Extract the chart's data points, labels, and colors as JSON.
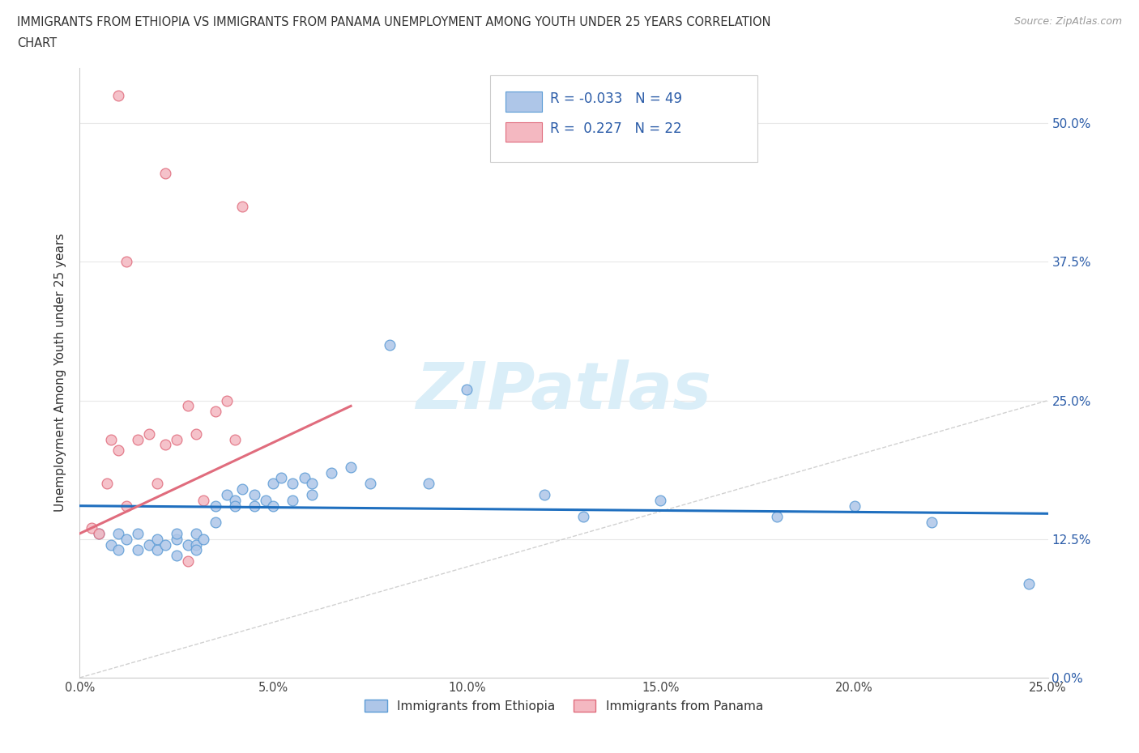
{
  "title_line1": "IMMIGRANTS FROM ETHIOPIA VS IMMIGRANTS FROM PANAMA UNEMPLOYMENT AMONG YOUTH UNDER 25 YEARS CORRELATION",
  "title_line2": "CHART",
  "source": "Source: ZipAtlas.com",
  "ylabel": "Unemployment Among Youth under 25 years",
  "xlim": [
    0.0,
    0.25
  ],
  "ylim": [
    0.0,
    0.55
  ],
  "yticks": [
    0.0,
    0.125,
    0.25,
    0.375,
    0.5
  ],
  "ytick_labels": [
    "0.0%",
    "12.5%",
    "25.0%",
    "37.5%",
    "50.0%"
  ],
  "xticks": [
    0.0,
    0.05,
    0.1,
    0.15,
    0.2,
    0.25
  ],
  "xtick_labels": [
    "0.0%",
    "5.0%",
    "10.0%",
    "15.0%",
    "20.0%",
    "25.0%"
  ],
  "ethiopia": {
    "name": "Immigrants from Ethiopia",
    "fill_color": "#aec6e8",
    "edge_color": "#5b9bd5",
    "R": -0.033,
    "N": 49,
    "trend_color": "#1f6fbf",
    "trend_x": [
      0.0,
      0.25
    ],
    "trend_y": [
      0.155,
      0.148
    ],
    "x": [
      0.005,
      0.008,
      0.01,
      0.01,
      0.012,
      0.015,
      0.015,
      0.018,
      0.02,
      0.02,
      0.022,
      0.025,
      0.025,
      0.025,
      0.028,
      0.03,
      0.03,
      0.03,
      0.032,
      0.035,
      0.035,
      0.038,
      0.04,
      0.04,
      0.042,
      0.045,
      0.045,
      0.048,
      0.05,
      0.05,
      0.052,
      0.055,
      0.055,
      0.058,
      0.06,
      0.06,
      0.065,
      0.07,
      0.075,
      0.08,
      0.09,
      0.1,
      0.12,
      0.13,
      0.15,
      0.18,
      0.2,
      0.22,
      0.245
    ],
    "y": [
      0.13,
      0.12,
      0.115,
      0.13,
      0.125,
      0.115,
      0.13,
      0.12,
      0.115,
      0.125,
      0.12,
      0.125,
      0.11,
      0.13,
      0.12,
      0.13,
      0.12,
      0.115,
      0.125,
      0.14,
      0.155,
      0.165,
      0.16,
      0.155,
      0.17,
      0.155,
      0.165,
      0.16,
      0.175,
      0.155,
      0.18,
      0.175,
      0.16,
      0.18,
      0.175,
      0.165,
      0.185,
      0.19,
      0.175,
      0.3,
      0.175,
      0.26,
      0.165,
      0.145,
      0.16,
      0.145,
      0.155,
      0.14,
      0.085
    ]
  },
  "panama": {
    "name": "Immigrants from Panama",
    "fill_color": "#f4b8c1",
    "edge_color": "#e06c7d",
    "R": 0.227,
    "N": 22,
    "trend_color": "#e06c7d",
    "trend_x": [
      0.0,
      0.07
    ],
    "trend_y": [
      0.13,
      0.245
    ],
    "x": [
      0.003,
      0.005,
      0.007,
      0.008,
      0.01,
      0.012,
      0.015,
      0.018,
      0.02,
      0.022,
      0.025,
      0.028,
      0.03,
      0.032,
      0.035,
      0.038,
      0.04,
      0.042,
      0.012,
      0.022,
      0.01,
      0.028
    ],
    "y": [
      0.135,
      0.13,
      0.175,
      0.215,
      0.205,
      0.155,
      0.215,
      0.22,
      0.175,
      0.21,
      0.215,
      0.245,
      0.22,
      0.16,
      0.24,
      0.25,
      0.215,
      0.425,
      0.375,
      0.455,
      0.525,
      0.105
    ]
  },
  "diagonal": {
    "color": "#cccccc",
    "linestyle": "--",
    "x": [
      0.0,
      0.55
    ],
    "y": [
      0.0,
      0.55
    ]
  },
  "watermark": "ZIPatlas",
  "watermark_color": "#daeef8",
  "grid_color": "#e8e8e8",
  "background_color": "#ffffff",
  "marker_size": 85,
  "legend_text_color": "#2b5ca8",
  "right_label_color": "#2b5ca8"
}
